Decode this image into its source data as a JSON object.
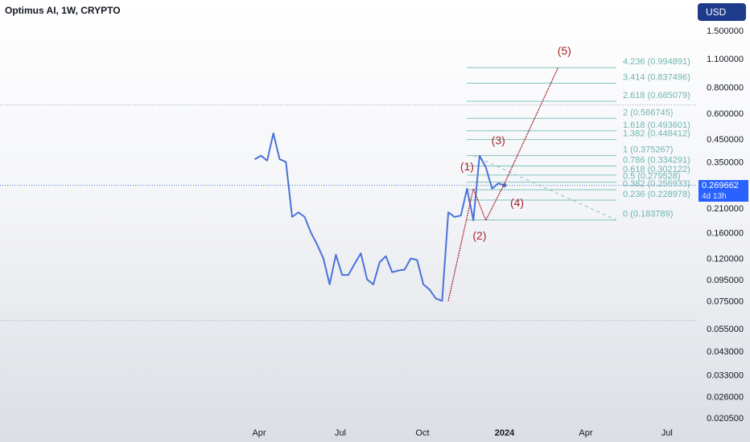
{
  "header": {
    "title": "Optimus AI, 1W, CRYPTO",
    "currency_button": "USD"
  },
  "price_label": {
    "price": "0.269662",
    "countdown": "4d 13h"
  },
  "colors": {
    "price_line": "#4a72d9",
    "wave_line": "#a3272c",
    "fib_line": "#7fc3bf",
    "fib_text": "#6fb5b0",
    "wave_label": "#a3272c",
    "price_label_bg": "#2962ff"
  },
  "chart_data": {
    "type": "line",
    "title": "Optimus AI, 1W, CRYPTO",
    "scale": "log",
    "ylim": [
      0.02,
      1.5
    ],
    "y_ticks": [
      "1.500000",
      "1.100000",
      "0.800000",
      "0.600000",
      "0.450000",
      "0.350000",
      "0.210000",
      "0.160000",
      "0.120000",
      "0.095000",
      "0.075000",
      "0.055000",
      "0.043000",
      "0.033000",
      "0.026000",
      "0.020500"
    ],
    "x_ticks": [
      "Apr",
      "Jul",
      "Oct",
      "2024",
      "Apr",
      "Jul"
    ],
    "x_tick_dates": [
      "2023-04-01",
      "2023-07-01",
      "2023-10-01",
      "2024-01-01",
      "2024-04-01",
      "2024-07-01"
    ],
    "series": [
      {
        "x": [
          "2023-03-27",
          "2023-04-03",
          "2023-04-10",
          "2023-04-17",
          "2023-04-24",
          "2023-05-01",
          "2023-05-08",
          "2023-05-15",
          "2023-05-22",
          "2023-05-29",
          "2023-06-05",
          "2023-06-12",
          "2023-06-19",
          "2023-06-26",
          "2023-07-03",
          "2023-07-10",
          "2023-07-17",
          "2023-07-24",
          "2023-07-31",
          "2023-08-07",
          "2023-08-14",
          "2023-08-21",
          "2023-08-28",
          "2023-09-04",
          "2023-09-11",
          "2023-09-18",
          "2023-09-25",
          "2023-10-02",
          "2023-10-09",
          "2023-10-16",
          "2023-10-23",
          "2023-10-30",
          "2023-11-06",
          "2023-11-13",
          "2023-11-20",
          "2023-11-27",
          "2023-12-04",
          "2023-12-11",
          "2023-12-18",
          "2023-12-25",
          "2024-01-01"
        ],
        "y": [
          0.36,
          0.375,
          0.355,
          0.48,
          0.36,
          0.35,
          0.19,
          0.2,
          0.19,
          0.16,
          0.14,
          0.12,
          0.09,
          0.125,
          0.1,
          0.1,
          0.113,
          0.127,
          0.095,
          0.09,
          0.115,
          0.123,
          0.103,
          0.105,
          0.106,
          0.12,
          0.118,
          0.09,
          0.085,
          0.077,
          0.075,
          0.2,
          0.19,
          0.193,
          0.26,
          0.183,
          0.375,
          0.33,
          0.26,
          0.276,
          0.2697
        ]
      }
    ],
    "current_price": 0.269662,
    "horizontal_lines": [
      0.6571,
      0.0603
    ],
    "wave_path": {
      "x": [
        "2023-10-30",
        "2023-11-27",
        "2023-12-11",
        "2024-01-01",
        "2024-03-01"
      ],
      "y": [
        0.075,
        0.26,
        0.183,
        0.276,
        0.994891
      ]
    },
    "wave_labels": [
      {
        "label": "(1)",
        "x": "2023-11-20",
        "y": 0.318
      },
      {
        "label": "(2)",
        "x": "2023-12-04",
        "y": 0.148
      },
      {
        "label": "(3)",
        "x": "2023-12-25",
        "y": 0.425
      },
      {
        "label": "(4)",
        "x": "2024-01-15",
        "y": 0.213
      },
      {
        "label": "(5)",
        "x": "2024-03-08",
        "y": 1.15
      }
    ],
    "fib_levels": [
      {
        "ratio": "4.236",
        "value": 0.994891,
        "label": "4.236 (0.994891)"
      },
      {
        "ratio": "3.414",
        "value": 0.837496,
        "label": "3.414 (0.837496)"
      },
      {
        "ratio": "2.618",
        "value": 0.685079,
        "label": "2.618 (0.685079)"
      },
      {
        "ratio": "2",
        "value": 0.566745,
        "label": "2 (0.566745)"
      },
      {
        "ratio": "1.618",
        "value": 0.493601,
        "label": "1.618 (0.493601)"
      },
      {
        "ratio": "1.382",
        "value": 0.448412,
        "label": "1.382 (0.448412)"
      },
      {
        "ratio": "1",
        "value": 0.375267,
        "label": "1 (0.375267)"
      },
      {
        "ratio": "0.786",
        "value": 0.334291,
        "label": "0.786 (0.334291)"
      },
      {
        "ratio": "0.618",
        "value": 0.302122,
        "label": "0.618 (0.302122)"
      },
      {
        "ratio": "0.5",
        "value": 0.279528,
        "label": "0.5 (0.279528)"
      },
      {
        "ratio": "0.382",
        "value": 0.256933,
        "label": "0.382 (0.256933)"
      },
      {
        "ratio": "0.236",
        "value": 0.228978,
        "label": "0.236 (0.228978)"
      },
      {
        "ratio": "0",
        "value": 0.183789,
        "label": "0 (0.183789)"
      }
    ],
    "fib_trend": {
      "x": [
        "2023-11-27",
        "2024-05-01"
      ],
      "y": [
        0.375267,
        0.183789
      ]
    }
  }
}
